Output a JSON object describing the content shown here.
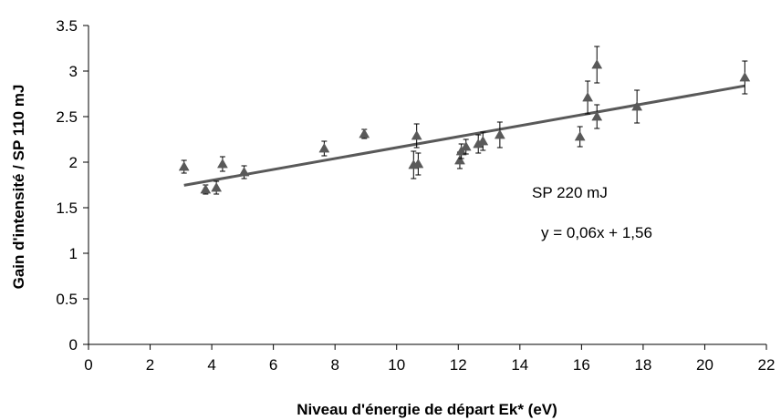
{
  "chart_data": {
    "type": "scatter",
    "title": "",
    "xlabel": "Niveau d'énergie de départ Ek* (eV)",
    "ylabel": "Gain d'intensité / SP 110 mJ",
    "xlim": [
      0,
      22
    ],
    "ylim": [
      0,
      3.5
    ],
    "x_ticks": [
      "0",
      "2",
      "4",
      "6",
      "8",
      "10",
      "12",
      "14",
      "16",
      "18",
      "20",
      "22"
    ],
    "y_ticks": [
      "0",
      "0.5",
      "1",
      "1.5",
      "2",
      "2.5",
      "3",
      "3.5"
    ],
    "grid": false,
    "legend": "none",
    "marker": "triangle",
    "marker_color": "#595959",
    "series": [
      {
        "points": [
          {
            "x": 3.1,
            "y": 1.95,
            "err": 0.07
          },
          {
            "x": 3.8,
            "y": 1.7,
            "err": 0.05
          },
          {
            "x": 4.15,
            "y": 1.72,
            "err": 0.07
          },
          {
            "x": 4.35,
            "y": 1.98,
            "err": 0.08
          },
          {
            "x": 5.05,
            "y": 1.89,
            "err": 0.07
          },
          {
            "x": 7.65,
            "y": 2.15,
            "err": 0.08
          },
          {
            "x": 8.95,
            "y": 2.31,
            "err": 0.05
          },
          {
            "x": 10.55,
            "y": 1.97,
            "err": 0.15
          },
          {
            "x": 10.65,
            "y": 2.29,
            "err": 0.13
          },
          {
            "x": 10.7,
            "y": 1.98,
            "err": 0.12
          },
          {
            "x": 12.05,
            "y": 2.02,
            "err": 0.09
          },
          {
            "x": 12.1,
            "y": 2.12,
            "err": 0.08
          },
          {
            "x": 12.25,
            "y": 2.17,
            "err": 0.08
          },
          {
            "x": 12.65,
            "y": 2.2,
            "err": 0.1
          },
          {
            "x": 12.8,
            "y": 2.23,
            "err": 0.1
          },
          {
            "x": 13.35,
            "y": 2.3,
            "err": 0.14
          },
          {
            "x": 15.95,
            "y": 2.28,
            "err": 0.11
          },
          {
            "x": 16.2,
            "y": 2.71,
            "err": 0.18
          },
          {
            "x": 16.5,
            "y": 2.5,
            "err": 0.13
          },
          {
            "x": 16.5,
            "y": 3.07,
            "err": 0.2
          },
          {
            "x": 17.8,
            "y": 2.61,
            "err": 0.18
          },
          {
            "x": 21.3,
            "y": 2.93,
            "err": 0.18
          }
        ]
      }
    ],
    "trendline": {
      "slope": 0.06,
      "intercept": 1.56,
      "x_range": [
        3.1,
        21.3
      ],
      "color": "#595959"
    },
    "annotations": [
      "SP 220 mJ",
      "y = 0,06x + 1,56"
    ]
  }
}
